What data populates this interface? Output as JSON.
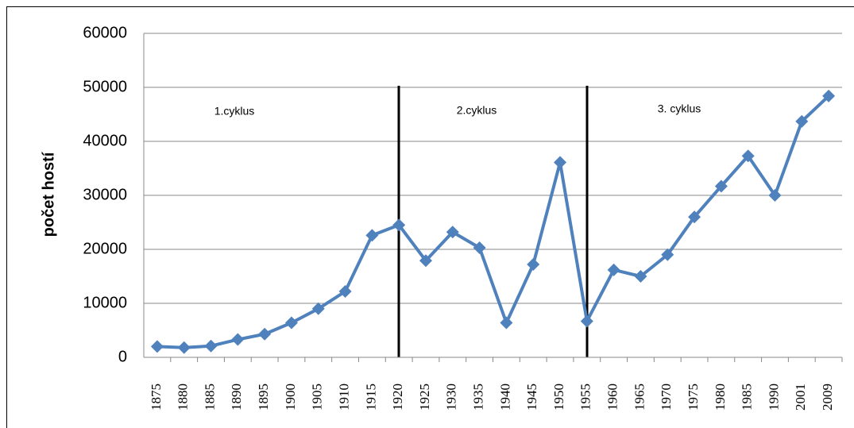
{
  "chart_data": {
    "type": "line",
    "ylabel": "počet hostí",
    "annotations": [
      "1.cyklus",
      "2.cyklus",
      "3. cyklus"
    ],
    "categories": [
      "1875",
      "1880",
      "1885",
      "1890",
      "1895",
      "1900",
      "1905",
      "1910",
      "1915",
      "1920",
      "1925",
      "1930",
      "1935",
      "1940",
      "1945",
      "1950",
      "1955",
      "1960",
      "1965",
      "1970",
      "1975",
      "1980",
      "1985",
      "1990",
      "2001",
      "2009"
    ],
    "series": [
      {
        "color": "#4f81bd",
        "values": [
          2000,
          1800,
          2100,
          3300,
          4300,
          6400,
          9000,
          12200,
          22600,
          24500,
          17900,
          23200,
          20300,
          6400,
          17200,
          36100,
          6700,
          16200,
          15000,
          19000,
          26000,
          31700,
          37300,
          30000,
          43700,
          48400
        ]
      }
    ],
    "ylim": [
      0,
      60000
    ],
    "yticks": [
      0,
      10000,
      20000,
      30000,
      40000,
      50000,
      60000
    ],
    "grid": true
  }
}
